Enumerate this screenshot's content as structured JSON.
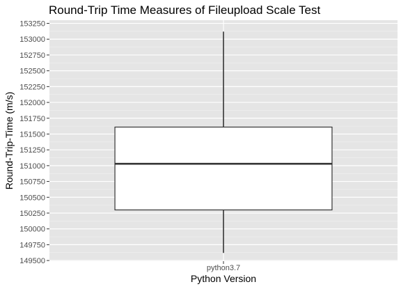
{
  "chart_data": {
    "type": "box",
    "title": "Round-Trip Time Measures of Fileupload Scale Test",
    "xlabel": "Python Version",
    "ylabel": "Round-Trip-Time (m/s)",
    "categories": [
      "python3.7"
    ],
    "boxes": [
      {
        "category": "python3.7",
        "whisker_low": 149620,
        "q1": 150300,
        "median": 151030,
        "q3": 151610,
        "whisker_high": 153120
      }
    ],
    "yticks": [
      149500,
      149750,
      150000,
      150250,
      150500,
      150750,
      151000,
      151250,
      151500,
      151750,
      152000,
      152250,
      152500,
      152750,
      153000,
      153250
    ],
    "ylim": [
      149490,
      153300
    ],
    "grid": true,
    "colors": {
      "panel_background": "#e5e5e5",
      "grid_major": "#ffffff",
      "grid_minor": "#f2f2f2",
      "box_fill": "#ffffff",
      "box_stroke": "#333333",
      "tick_label": "#4d4d4d"
    }
  }
}
